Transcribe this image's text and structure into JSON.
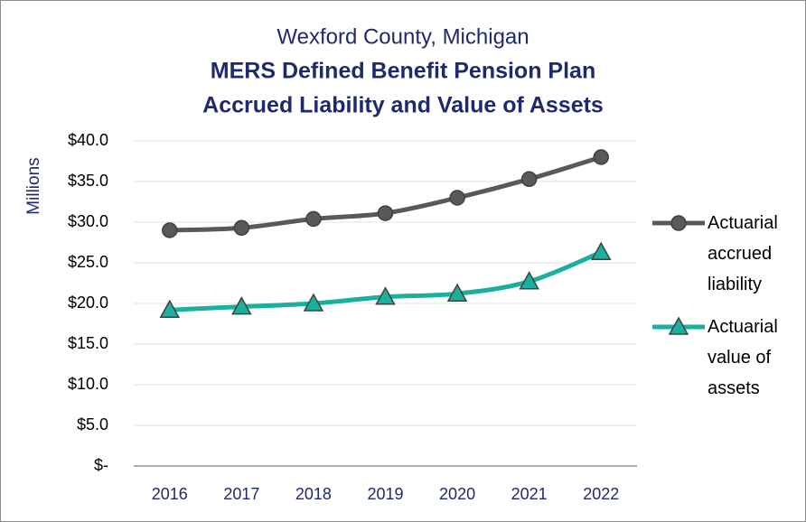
{
  "chart_data": {
    "type": "line",
    "suptitle": "Wexford County, Michigan",
    "title": [
      "MERS Defined Benefit Pension Plan",
      "Accrued Liability and Value of Assets"
    ],
    "ylabel": "Millions",
    "categories": [
      "2016",
      "2017",
      "2018",
      "2019",
      "2020",
      "2021",
      "2022"
    ],
    "series": [
      {
        "name": "Actuarial accrued liability",
        "color": "#595959",
        "marker": "circle",
        "values": [
          29.0,
          29.3,
          30.4,
          31.1,
          33.0,
          35.3,
          38.0
        ]
      },
      {
        "name": "Actuarial value of assets",
        "color": "#1bb09e",
        "marker": "triangle",
        "values": [
          19.2,
          19.6,
          20.0,
          20.8,
          21.2,
          22.7,
          26.3
        ]
      }
    ],
    "ylim": [
      0,
      40
    ],
    "yticks": [
      {
        "value": 0,
        "label": "$-"
      },
      {
        "value": 5,
        "label": "$5.0"
      },
      {
        "value": 10,
        "label": "$10.0"
      },
      {
        "value": 15,
        "label": "$15.0"
      },
      {
        "value": 20,
        "label": "$20.0"
      },
      {
        "value": 25,
        "label": "$25.0"
      },
      {
        "value": 30,
        "label": "$30.0"
      },
      {
        "value": 35,
        "label": "$35.0"
      },
      {
        "value": 40,
        "label": "$40.0"
      }
    ],
    "grid": true,
    "legend": "right"
  }
}
